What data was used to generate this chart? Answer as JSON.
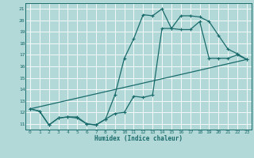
{
  "xlabel": "Humidex (Indice chaleur)",
  "bg_color": "#b2d8d8",
  "grid_color": "#ffffff",
  "line_color": "#1a6b6b",
  "xlim": [
    -0.5,
    23.5
  ],
  "ylim": [
    10.5,
    21.5
  ],
  "xticks": [
    0,
    1,
    2,
    3,
    4,
    5,
    6,
    7,
    8,
    9,
    10,
    11,
    12,
    13,
    14,
    15,
    16,
    17,
    18,
    19,
    20,
    21,
    22,
    23
  ],
  "yticks": [
    11,
    12,
    13,
    14,
    15,
    16,
    17,
    18,
    19,
    20,
    21
  ],
  "line1_x": [
    0,
    1,
    2,
    3,
    4,
    5,
    6,
    7,
    8,
    9,
    10,
    11,
    12,
    13,
    14,
    15,
    16,
    17,
    18,
    19,
    20,
    21,
    22,
    23
  ],
  "line1_y": [
    12.3,
    12.1,
    10.9,
    11.5,
    11.6,
    11.6,
    11.0,
    10.9,
    11.4,
    11.9,
    12.0,
    13.4,
    13.3,
    13.5,
    19.3,
    19.3,
    19.2,
    19.2,
    19.9,
    16.7,
    16.7,
    16.7,
    17.0,
    16.6
  ],
  "line2_x": [
    0,
    1,
    2,
    3,
    4,
    5,
    6,
    7,
    8,
    9,
    10,
    11,
    12,
    13,
    14,
    15,
    16,
    17,
    18,
    19,
    20,
    21,
    22,
    23
  ],
  "line2_y": [
    12.3,
    12.1,
    10.9,
    11.5,
    11.6,
    11.5,
    11.0,
    10.9,
    11.4,
    13.5,
    16.7,
    18.4,
    20.5,
    20.4,
    21.0,
    19.3,
    20.4,
    20.4,
    20.3,
    19.9,
    18.7,
    17.5,
    17.1,
    16.6
  ],
  "line3_x": [
    0,
    23
  ],
  "line3_y": [
    12.3,
    16.6
  ]
}
